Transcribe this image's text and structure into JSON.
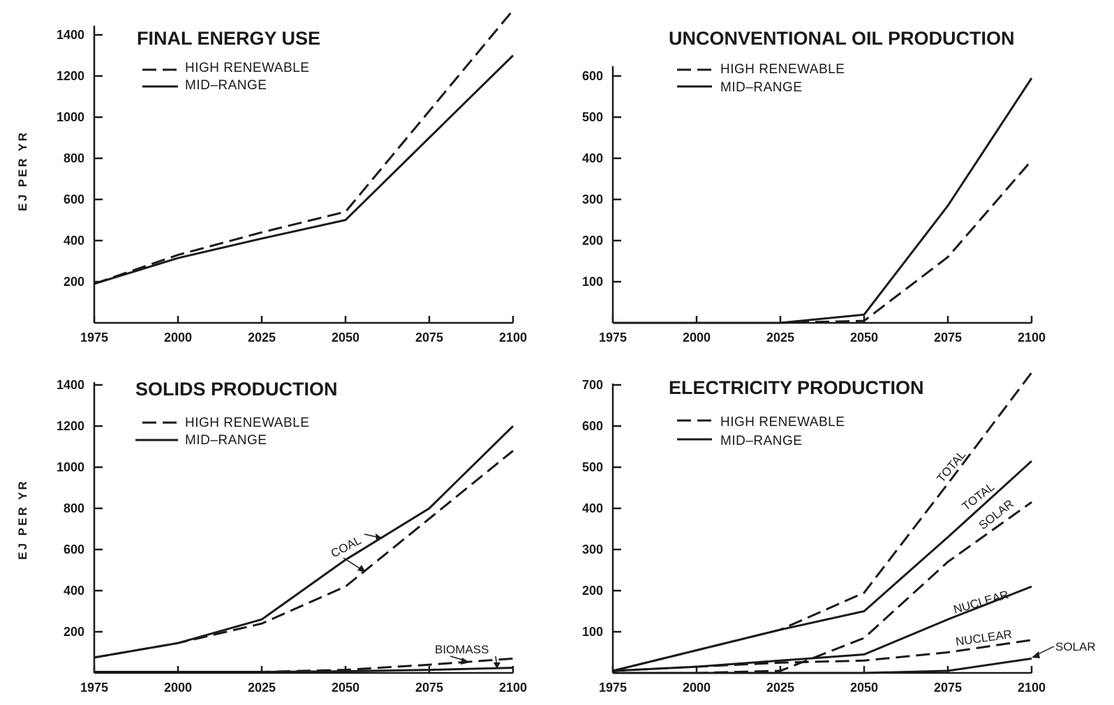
{
  "y_axis_label": "EJ PER YR",
  "legend": {
    "high_renewable": "HIGH RENEWABLE",
    "mid_range": "MID–RANGE"
  },
  "chart_data": [
    {
      "type": "line",
      "title": "FINAL ENERGY USE",
      "xlabel": "",
      "ylabel": "EJ PER YR",
      "x": [
        1975,
        2000,
        2025,
        2050,
        2075,
        2100
      ],
      "xlim": [
        1975,
        2100
      ],
      "ylim": [
        0,
        1400
      ],
      "yticks": [
        200,
        400,
        600,
        800,
        1000,
        1200,
        1400
      ],
      "legend_position": "top-left",
      "series": [
        {
          "name": "HIGH RENEWABLE",
          "style": "dashed",
          "values": [
            190,
            330,
            440,
            540,
            1030,
            1520
          ]
        },
        {
          "name": "MID–RANGE",
          "style": "solid",
          "values": [
            190,
            315,
            410,
            500,
            900,
            1300
          ]
        }
      ],
      "annotations": []
    },
    {
      "type": "line",
      "title": "UNCONVENTIONAL OIL PRODUCTION",
      "xlabel": "",
      "ylabel": "",
      "x": [
        1975,
        2000,
        2025,
        2050,
        2075,
        2100
      ],
      "xlim": [
        1975,
        2100
      ],
      "ylim": [
        0,
        600
      ],
      "yticks": [
        100,
        200,
        300,
        400,
        500,
        600
      ],
      "legend_position": "top-left",
      "series": [
        {
          "name": "HIGH RENEWABLE",
          "style": "dashed",
          "values": [
            0,
            0,
            0,
            5,
            160,
            395
          ]
        },
        {
          "name": "MID–RANGE",
          "style": "solid",
          "values": [
            0,
            0,
            0,
            20,
            285,
            595
          ]
        }
      ],
      "annotations": []
    },
    {
      "type": "line",
      "title": "SOLIDS PRODUCTION",
      "xlabel": "",
      "ylabel": "EJ PER YR",
      "x": [
        1975,
        2000,
        2025,
        2050,
        2075,
        2100
      ],
      "xlim": [
        1975,
        2100
      ],
      "ylim": [
        0,
        1400
      ],
      "yticks": [
        200,
        400,
        600,
        800,
        1000,
        1200,
        1400
      ],
      "legend_position": "top-left",
      "series": [
        {
          "name": "",
          "group": "COAL",
          "style": "dashed",
          "values": [
            75,
            145,
            240,
            420,
            750,
            1080
          ]
        },
        {
          "name": "",
          "group": "COAL",
          "style": "solid",
          "values": [
            75,
            145,
            260,
            550,
            800,
            1200
          ]
        },
        {
          "name": "",
          "group": "BIOMASS",
          "style": "dashed",
          "values": [
            5,
            5,
            5,
            15,
            40,
            70
          ]
        },
        {
          "name": "",
          "group": "BIOMASS",
          "style": "solid",
          "values": [
            5,
            5,
            5,
            8,
            15,
            25
          ]
        }
      ],
      "annotations": [
        "COAL",
        "BIOMASS"
      ]
    },
    {
      "type": "line",
      "title": "ELECTRICITY PRODUCTION",
      "xlabel": "",
      "ylabel": "",
      "x": [
        1975,
        2000,
        2025,
        2050,
        2075,
        2100
      ],
      "xlim": [
        1975,
        2100
      ],
      "ylim": [
        0,
        700
      ],
      "yticks": [
        100,
        200,
        300,
        400,
        500,
        600,
        700
      ],
      "legend_position": "top-left",
      "series": [
        {
          "name": "",
          "group": "TOTAL",
          "style": "dashed",
          "values": [
            5,
            55,
            105,
            195,
            460,
            730
          ]
        },
        {
          "name": "",
          "group": "TOTAL",
          "style": "solid",
          "values": [
            5,
            55,
            105,
            150,
            330,
            515
          ]
        },
        {
          "name": "",
          "group": "SOLAR",
          "style": "dashed",
          "values": [
            0,
            0,
            5,
            85,
            270,
            415
          ]
        },
        {
          "name": "",
          "group": "SOLAR",
          "style": "solid",
          "values": [
            0,
            0,
            0,
            0,
            5,
            35
          ]
        },
        {
          "name": "",
          "group": "NUCLEAR",
          "style": "solid",
          "values": [
            5,
            15,
            30,
            45,
            130,
            210
          ]
        },
        {
          "name": "",
          "group": "NUCLEAR",
          "style": "dashed",
          "values": [
            5,
            15,
            25,
            30,
            50,
            80
          ]
        }
      ],
      "annotations": [
        "TOTAL",
        "TOTAL",
        "SOLAR",
        "NUCLEAR",
        "NUCLEAR",
        "SOLAR"
      ]
    }
  ]
}
